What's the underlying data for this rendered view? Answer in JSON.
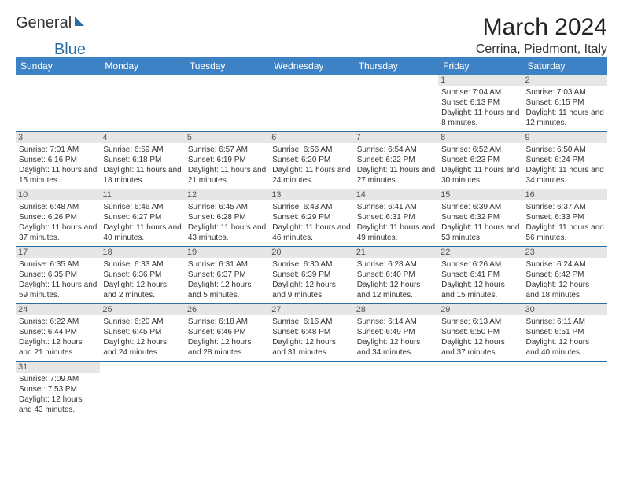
{
  "logo": {
    "text1": "General",
    "text2": "Blue"
  },
  "title": "March 2024",
  "location": "Cerrina, Piedmont, Italy",
  "colors": {
    "header_bg": "#3d82c4",
    "header_text": "#ffffff",
    "border": "#2b6ca3",
    "daynum_bg": "#e6e6e6",
    "body_text": "#333333",
    "logo_accent": "#2b6ca3"
  },
  "fonts": {
    "title_size": 30,
    "location_size": 16,
    "dayhead_size": 12,
    "daynum_size": 11,
    "body_size": 10
  },
  "days_of_week": [
    "Sunday",
    "Monday",
    "Tuesday",
    "Wednesday",
    "Thursday",
    "Friday",
    "Saturday"
  ],
  "weeks": [
    [
      null,
      null,
      null,
      null,
      null,
      {
        "n": "1",
        "sr": "Sunrise: 7:04 AM",
        "ss": "Sunset: 6:13 PM",
        "dl": "Daylight: 11 hours and 8 minutes."
      },
      {
        "n": "2",
        "sr": "Sunrise: 7:03 AM",
        "ss": "Sunset: 6:15 PM",
        "dl": "Daylight: 11 hours and 12 minutes."
      }
    ],
    [
      {
        "n": "3",
        "sr": "Sunrise: 7:01 AM",
        "ss": "Sunset: 6:16 PM",
        "dl": "Daylight: 11 hours and 15 minutes."
      },
      {
        "n": "4",
        "sr": "Sunrise: 6:59 AM",
        "ss": "Sunset: 6:18 PM",
        "dl": "Daylight: 11 hours and 18 minutes."
      },
      {
        "n": "5",
        "sr": "Sunrise: 6:57 AM",
        "ss": "Sunset: 6:19 PM",
        "dl": "Daylight: 11 hours and 21 minutes."
      },
      {
        "n": "6",
        "sr": "Sunrise: 6:56 AM",
        "ss": "Sunset: 6:20 PM",
        "dl": "Daylight: 11 hours and 24 minutes."
      },
      {
        "n": "7",
        "sr": "Sunrise: 6:54 AM",
        "ss": "Sunset: 6:22 PM",
        "dl": "Daylight: 11 hours and 27 minutes."
      },
      {
        "n": "8",
        "sr": "Sunrise: 6:52 AM",
        "ss": "Sunset: 6:23 PM",
        "dl": "Daylight: 11 hours and 30 minutes."
      },
      {
        "n": "9",
        "sr": "Sunrise: 6:50 AM",
        "ss": "Sunset: 6:24 PM",
        "dl": "Daylight: 11 hours and 34 minutes."
      }
    ],
    [
      {
        "n": "10",
        "sr": "Sunrise: 6:48 AM",
        "ss": "Sunset: 6:26 PM",
        "dl": "Daylight: 11 hours and 37 minutes."
      },
      {
        "n": "11",
        "sr": "Sunrise: 6:46 AM",
        "ss": "Sunset: 6:27 PM",
        "dl": "Daylight: 11 hours and 40 minutes."
      },
      {
        "n": "12",
        "sr": "Sunrise: 6:45 AM",
        "ss": "Sunset: 6:28 PM",
        "dl": "Daylight: 11 hours and 43 minutes."
      },
      {
        "n": "13",
        "sr": "Sunrise: 6:43 AM",
        "ss": "Sunset: 6:29 PM",
        "dl": "Daylight: 11 hours and 46 minutes."
      },
      {
        "n": "14",
        "sr": "Sunrise: 6:41 AM",
        "ss": "Sunset: 6:31 PM",
        "dl": "Daylight: 11 hours and 49 minutes."
      },
      {
        "n": "15",
        "sr": "Sunrise: 6:39 AM",
        "ss": "Sunset: 6:32 PM",
        "dl": "Daylight: 11 hours and 53 minutes."
      },
      {
        "n": "16",
        "sr": "Sunrise: 6:37 AM",
        "ss": "Sunset: 6:33 PM",
        "dl": "Daylight: 11 hours and 56 minutes."
      }
    ],
    [
      {
        "n": "17",
        "sr": "Sunrise: 6:35 AM",
        "ss": "Sunset: 6:35 PM",
        "dl": "Daylight: 11 hours and 59 minutes."
      },
      {
        "n": "18",
        "sr": "Sunrise: 6:33 AM",
        "ss": "Sunset: 6:36 PM",
        "dl": "Daylight: 12 hours and 2 minutes."
      },
      {
        "n": "19",
        "sr": "Sunrise: 6:31 AM",
        "ss": "Sunset: 6:37 PM",
        "dl": "Daylight: 12 hours and 5 minutes."
      },
      {
        "n": "20",
        "sr": "Sunrise: 6:30 AM",
        "ss": "Sunset: 6:39 PM",
        "dl": "Daylight: 12 hours and 9 minutes."
      },
      {
        "n": "21",
        "sr": "Sunrise: 6:28 AM",
        "ss": "Sunset: 6:40 PM",
        "dl": "Daylight: 12 hours and 12 minutes."
      },
      {
        "n": "22",
        "sr": "Sunrise: 6:26 AM",
        "ss": "Sunset: 6:41 PM",
        "dl": "Daylight: 12 hours and 15 minutes."
      },
      {
        "n": "23",
        "sr": "Sunrise: 6:24 AM",
        "ss": "Sunset: 6:42 PM",
        "dl": "Daylight: 12 hours and 18 minutes."
      }
    ],
    [
      {
        "n": "24",
        "sr": "Sunrise: 6:22 AM",
        "ss": "Sunset: 6:44 PM",
        "dl": "Daylight: 12 hours and 21 minutes."
      },
      {
        "n": "25",
        "sr": "Sunrise: 6:20 AM",
        "ss": "Sunset: 6:45 PM",
        "dl": "Daylight: 12 hours and 24 minutes."
      },
      {
        "n": "26",
        "sr": "Sunrise: 6:18 AM",
        "ss": "Sunset: 6:46 PM",
        "dl": "Daylight: 12 hours and 28 minutes."
      },
      {
        "n": "27",
        "sr": "Sunrise: 6:16 AM",
        "ss": "Sunset: 6:48 PM",
        "dl": "Daylight: 12 hours and 31 minutes."
      },
      {
        "n": "28",
        "sr": "Sunrise: 6:14 AM",
        "ss": "Sunset: 6:49 PM",
        "dl": "Daylight: 12 hours and 34 minutes."
      },
      {
        "n": "29",
        "sr": "Sunrise: 6:13 AM",
        "ss": "Sunset: 6:50 PM",
        "dl": "Daylight: 12 hours and 37 minutes."
      },
      {
        "n": "30",
        "sr": "Sunrise: 6:11 AM",
        "ss": "Sunset: 6:51 PM",
        "dl": "Daylight: 12 hours and 40 minutes."
      }
    ],
    [
      {
        "n": "31",
        "sr": "Sunrise: 7:09 AM",
        "ss": "Sunset: 7:53 PM",
        "dl": "Daylight: 12 hours and 43 minutes."
      },
      null,
      null,
      null,
      null,
      null,
      null
    ]
  ]
}
